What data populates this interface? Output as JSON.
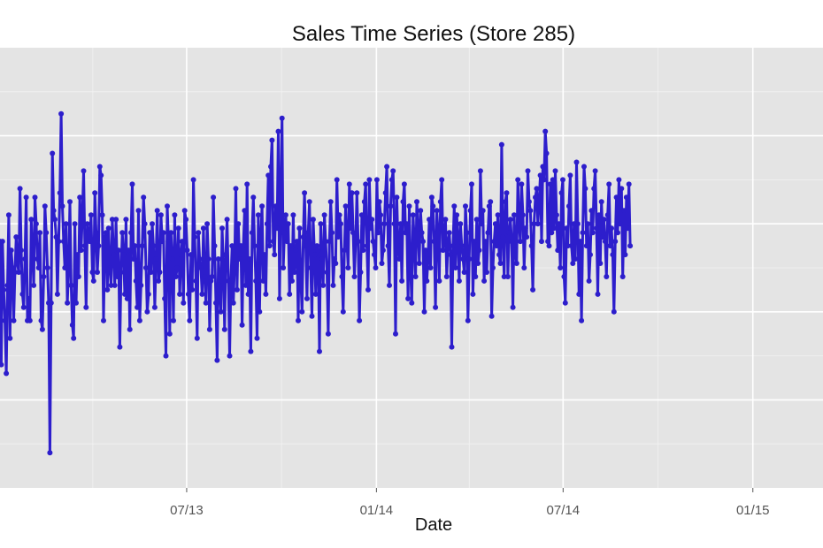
{
  "chart_data": {
    "type": "line",
    "title": "Sales Time Series (Store 285)",
    "xlabel": "Date",
    "ylabel": "",
    "x_tick_labels": [
      "07/13",
      "01/14",
      "07/14",
      "01/15"
    ],
    "x_ticks": [
      "2013-07-01",
      "2014-01-01",
      "2014-07-01",
      "2015-01-01"
    ],
    "xlim": [
      "2013-01-01",
      "2015-03-10"
    ],
    "y_gridlines": [
      0.2,
      0.4,
      0.6,
      0.8
    ],
    "ylim": [
      0.0,
      1.0
    ],
    "grid": true,
    "series": [
      {
        "color": "#2d1ecc",
        "x_start": "2013-01-01",
        "x_step_days": 1.21,
        "values": [
          0.56,
          0.28,
          0.56,
          0.45,
          0.38,
          0.26,
          0.46,
          0.62,
          0.34,
          0.54,
          0.5,
          0.38,
          0.49,
          0.57,
          0.51,
          0.49,
          0.68,
          0.54,
          0.44,
          0.41,
          0.52,
          0.66,
          0.38,
          0.43,
          0.38,
          0.61,
          0.54,
          0.46,
          0.66,
          0.6,
          0.52,
          0.5,
          0.58,
          0.38,
          0.36,
          0.48,
          0.64,
          0.58,
          0.5,
          0.42,
          0.08,
          0.42,
          0.76,
          0.63,
          0.61,
          0.57,
          0.44,
          0.56,
          0.67,
          0.85,
          0.64,
          0.56,
          0.5,
          0.6,
          0.42,
          0.5,
          0.65,
          0.46,
          0.37,
          0.34,
          0.6,
          0.42,
          0.53,
          0.48,
          0.66,
          0.54,
          0.62,
          0.72,
          0.55,
          0.41,
          0.6,
          0.58,
          0.56,
          0.62,
          0.49,
          0.47,
          0.67,
          0.58,
          0.49,
          0.55,
          0.73,
          0.71,
          0.62,
          0.38,
          0.57,
          0.58,
          0.45,
          0.59,
          0.5,
          0.46,
          0.61,
          0.53,
          0.46,
          0.61,
          0.48,
          0.54,
          0.32,
          0.49,
          0.58,
          0.53,
          0.44,
          0.61,
          0.43,
          0.54,
          0.36,
          0.58,
          0.69,
          0.52,
          0.55,
          0.47,
          0.41,
          0.63,
          0.38,
          0.46,
          0.55,
          0.66,
          0.6,
          0.5,
          0.4,
          0.44,
          0.58,
          0.49,
          0.6,
          0.55,
          0.41,
          0.52,
          0.63,
          0.47,
          0.49,
          0.62,
          0.56,
          0.58,
          0.43,
          0.3,
          0.64,
          0.56,
          0.35,
          0.58,
          0.52,
          0.38,
          0.62,
          0.48,
          0.5,
          0.59,
          0.44,
          0.53,
          0.56,
          0.42,
          0.63,
          0.61,
          0.54,
          0.44,
          0.38,
          0.53,
          0.45,
          0.7,
          0.57,
          0.47,
          0.34,
          0.58,
          0.52,
          0.5,
          0.44,
          0.59,
          0.48,
          0.42,
          0.6,
          0.52,
          0.36,
          0.47,
          0.48,
          0.66,
          0.55,
          0.42,
          0.29,
          0.52,
          0.46,
          0.4,
          0.59,
          0.51,
          0.36,
          0.53,
          0.61,
          0.47,
          0.3,
          0.47,
          0.55,
          0.42,
          0.51,
          0.68,
          0.45,
          0.6,
          0.52,
          0.55,
          0.37,
          0.55,
          0.63,
          0.46,
          0.69,
          0.44,
          0.52,
          0.31,
          0.58,
          0.66,
          0.55,
          0.47,
          0.34,
          0.62,
          0.4,
          0.57,
          0.64,
          0.47,
          0.53,
          0.44,
          0.6,
          0.71,
          0.55,
          0.73,
          0.79,
          0.56,
          0.53,
          0.64,
          0.59,
          0.81,
          0.43,
          0.66,
          0.84,
          0.5,
          0.58,
          0.62,
          0.56,
          0.6,
          0.44,
          0.55,
          0.47,
          0.62,
          0.49,
          0.54,
          0.56,
          0.38,
          0.59,
          0.48,
          0.4,
          0.57,
          0.67,
          0.55,
          0.43,
          0.58,
          0.65,
          0.5,
          0.39,
          0.61,
          0.53,
          0.44,
          0.55,
          0.54,
          0.31,
          0.6,
          0.52,
          0.46,
          0.62,
          0.56,
          0.49,
          0.35,
          0.56,
          0.65,
          0.58,
          0.46,
          0.52,
          0.51,
          0.7,
          0.57,
          0.62,
          0.6,
          0.48,
          0.4,
          0.54,
          0.64,
          0.56,
          0.5,
          0.69,
          0.59,
          0.67,
          0.58,
          0.48,
          0.56,
          0.67,
          0.56,
          0.38,
          0.49,
          0.62,
          0.54,
          0.65,
          0.69,
          0.55,
          0.45,
          0.7,
          0.59,
          0.61,
          0.56,
          0.53,
          0.5,
          0.7,
          0.58,
          0.65,
          0.62,
          0.51,
          0.54,
          0.6,
          0.67,
          0.73,
          0.55,
          0.46,
          0.64,
          0.7,
          0.72,
          0.6,
          0.35,
          0.66,
          0.55,
          0.52,
          0.6,
          0.47,
          0.65,
          0.69,
          0.58,
          0.6,
          0.43,
          0.64,
          0.5,
          0.42,
          0.62,
          0.56,
          0.48,
          0.65,
          0.59,
          0.51,
          0.63,
          0.58,
          0.56,
          0.4,
          0.54,
          0.47,
          0.52,
          0.61,
          0.5,
          0.66,
          0.64,
          0.56,
          0.41,
          0.63,
          0.58,
          0.47,
          0.65,
          0.7,
          0.54,
          0.56,
          0.61,
          0.48,
          0.56,
          0.58,
          0.53,
          0.32,
          0.55,
          0.64,
          0.5,
          0.62,
          0.57,
          0.47,
          0.6,
          0.55,
          0.52,
          0.49,
          0.64,
          0.58,
          0.38,
          0.52,
          0.63,
          0.69,
          0.44,
          0.56,
          0.48,
          0.61,
          0.51,
          0.54,
          0.72,
          0.6,
          0.63,
          0.47,
          0.56,
          0.49,
          0.58,
          0.64,
          0.65,
          0.39,
          0.5,
          0.56,
          0.6,
          0.55,
          0.62,
          0.53,
          0.51,
          0.78,
          0.57,
          0.48,
          0.65,
          0.67,
          0.48,
          0.58,
          0.61,
          0.56,
          0.41,
          0.62,
          0.54,
          0.51,
          0.7,
          0.6,
          0.56,
          0.69,
          0.62,
          0.5,
          0.59,
          0.57,
          0.72,
          0.65,
          0.63,
          0.55,
          0.45,
          0.6,
          0.66,
          0.68,
          0.6,
          0.65,
          0.71,
          0.56,
          0.73,
          0.7,
          0.81,
          0.76,
          0.56,
          0.55,
          0.69,
          0.58,
          0.7,
          0.59,
          0.72,
          0.62,
          0.54,
          0.6,
          0.5,
          0.67,
          0.7,
          0.48,
          0.42,
          0.59,
          0.55,
          0.64,
          0.71,
          0.55,
          0.51,
          0.6,
          0.52,
          0.74,
          0.6,
          0.44,
          0.56,
          0.38,
          0.58,
          0.73,
          0.68,
          0.55,
          0.6,
          0.47,
          0.53,
          0.63,
          0.58,
          0.68,
          0.72,
          0.59,
          0.44,
          0.62,
          0.51,
          0.65,
          0.57,
          0.61,
          0.56,
          0.48,
          0.62,
          0.69,
          0.55,
          0.59,
          0.53,
          0.4,
          0.56,
          0.66,
          0.58,
          0.7,
          0.6,
          0.68,
          0.48,
          0.63,
          0.53,
          0.66,
          0.59,
          0.69,
          0.55
        ]
      }
    ]
  }
}
